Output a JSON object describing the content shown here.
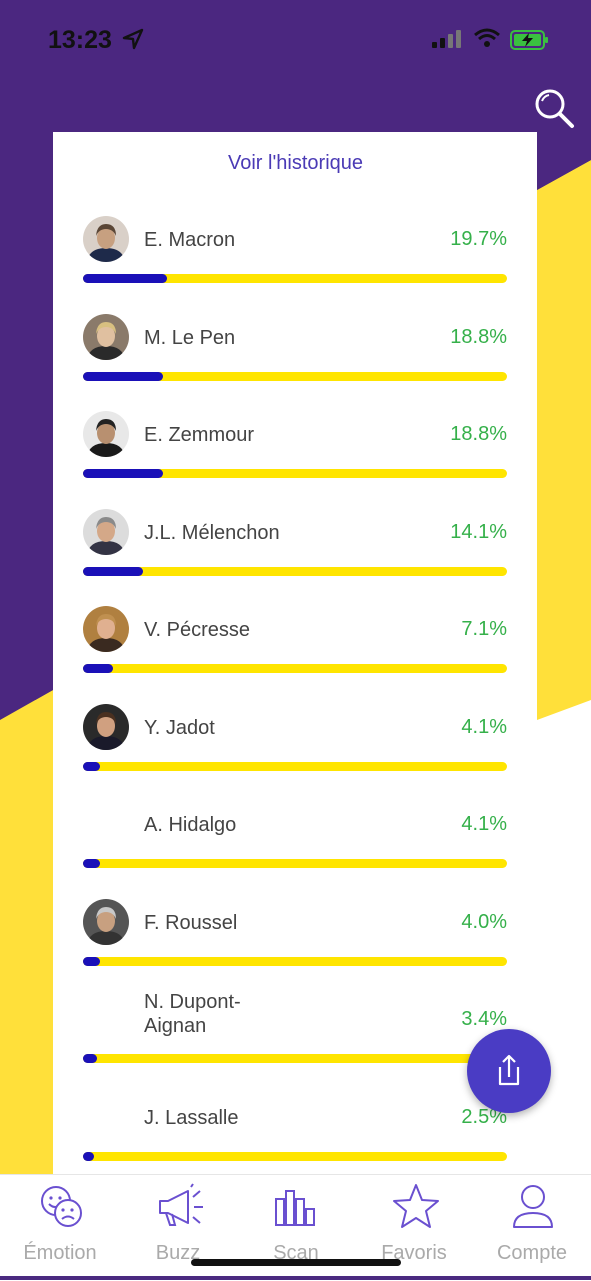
{
  "status_bar": {
    "time": "13:23"
  },
  "history_link": "Voir l'historique",
  "candidates": [
    {
      "name": "E. Macron",
      "percent_label": "19.7%",
      "share": 0.197,
      "has_photo": true,
      "photo": {
        "bg": "#d9d0c8",
        "skin": "#c7a080",
        "hair": "#5a4636",
        "suit": "#1e2a4a"
      }
    },
    {
      "name": "M. Le Pen",
      "percent_label": "18.8%",
      "share": 0.188,
      "has_photo": true,
      "photo": {
        "bg": "#8a7a6a",
        "skin": "#e0c0a0",
        "hair": "#d8c080",
        "suit": "#2a2a2a"
      }
    },
    {
      "name": "E. Zemmour",
      "percent_label": "18.8%",
      "share": 0.188,
      "has_photo": true,
      "photo": {
        "bg": "#e8e8e8",
        "skin": "#b89070",
        "hair": "#222222",
        "suit": "#1a1a1a"
      }
    },
    {
      "name": "J.L. Mélenchon",
      "percent_label": "14.1%",
      "share": 0.141,
      "has_photo": true,
      "photo": {
        "bg": "#dcdcdc",
        "skin": "#d4a888",
        "hair": "#8a8a8a",
        "suit": "#333344"
      }
    },
    {
      "name": "V. Pécresse",
      "percent_label": "7.1%",
      "share": 0.071,
      "has_photo": true,
      "photo": {
        "bg": "#b08040",
        "skin": "#e0b090",
        "hair": "#c09050",
        "suit": "#3a2a20"
      }
    },
    {
      "name": "Y. Jadot",
      "percent_label": "4.1%",
      "share": 0.041,
      "has_photo": true,
      "photo": {
        "bg": "#2a2a2a",
        "skin": "#d0a080",
        "hair": "#4a3020",
        "suit": "#1a1a2a"
      }
    },
    {
      "name": "A. Hidalgo",
      "percent_label": "4.1%",
      "share": 0.041,
      "has_photo": false
    },
    {
      "name": "F. Roussel",
      "percent_label": "4.0%",
      "share": 0.04,
      "has_photo": true,
      "photo": {
        "bg": "#555555",
        "skin": "#c8a080",
        "hair": "#c8c8c8",
        "suit": "#333333"
      }
    },
    {
      "name": "N. Dupont-Aignan",
      "percent_label": "3.4%",
      "share": 0.034,
      "has_photo": false
    },
    {
      "name": "J. Lassalle",
      "percent_label": "2.5%",
      "share": 0.025,
      "has_photo": false
    }
  ],
  "tabs": [
    {
      "label": "Émotion",
      "icon": "emotion-icon"
    },
    {
      "label": "Buzz",
      "icon": "megaphone-icon"
    },
    {
      "label": "Scan",
      "icon": "bar-chart-icon"
    },
    {
      "label": "Favoris",
      "icon": "star-icon"
    },
    {
      "label": "Compte",
      "icon": "user-icon"
    }
  ],
  "colors": {
    "header_purple": "#4b2780",
    "yellow": "#ffe03a",
    "bar_yellow": "#ffe500",
    "bar_fill": "#1a10b8",
    "percent_green": "#35b04a",
    "accent": "#4a3cc4",
    "icon_purple": "#6a50d0"
  }
}
